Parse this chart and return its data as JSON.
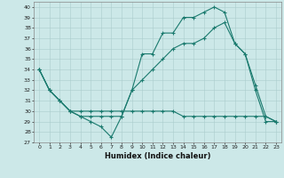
{
  "xlabel": "Humidex (Indice chaleur)",
  "background_color": "#cce8e8",
  "line_color": "#1a7a6e",
  "xlim": [
    -0.5,
    23.5
  ],
  "ylim": [
    27,
    40.5
  ],
  "yticks": [
    27,
    28,
    29,
    30,
    31,
    32,
    33,
    34,
    35,
    36,
    37,
    38,
    39,
    40
  ],
  "xticks": [
    0,
    1,
    2,
    3,
    4,
    5,
    6,
    7,
    8,
    9,
    10,
    11,
    12,
    13,
    14,
    15,
    16,
    17,
    18,
    19,
    20,
    21,
    22,
    23
  ],
  "series": [
    {
      "x": [
        0,
        1,
        2,
        3,
        4,
        5,
        6,
        7,
        8,
        9,
        10,
        11,
        12,
        13,
        14,
        15,
        16,
        17,
        18,
        19,
        20,
        21,
        22,
        23
      ],
      "y": [
        34,
        32,
        31,
        30,
        29.5,
        29,
        28.5,
        27.5,
        29.5,
        32,
        35.5,
        35.5,
        37.5,
        37.5,
        39,
        39,
        39.5,
        40,
        39.5,
        36.5,
        35.5,
        32.5,
        29.5,
        29
      ]
    },
    {
      "x": [
        0,
        1,
        2,
        3,
        4,
        5,
        6,
        7,
        8,
        9,
        10,
        11,
        12,
        13,
        14,
        15,
        16,
        17,
        18,
        19,
        20,
        21,
        22,
        23
      ],
      "y": [
        34,
        32,
        31,
        30,
        29.5,
        29.5,
        29.5,
        29.5,
        29.5,
        32,
        33,
        34,
        35,
        36,
        36.5,
        36.5,
        37,
        38,
        38.5,
        36.5,
        35.5,
        32,
        29,
        29
      ]
    },
    {
      "x": [
        0,
        1,
        2,
        3,
        4,
        5,
        6,
        7,
        8,
        9,
        10,
        11,
        12,
        13,
        14,
        15,
        16,
        17,
        18,
        19,
        20,
        21,
        22,
        23
      ],
      "y": [
        34,
        32,
        31,
        30,
        30,
        30,
        30,
        30,
        30,
        30,
        30,
        30,
        30,
        30,
        29.5,
        29.5,
        29.5,
        29.5,
        29.5,
        29.5,
        29.5,
        29.5,
        29.5,
        29
      ]
    }
  ]
}
